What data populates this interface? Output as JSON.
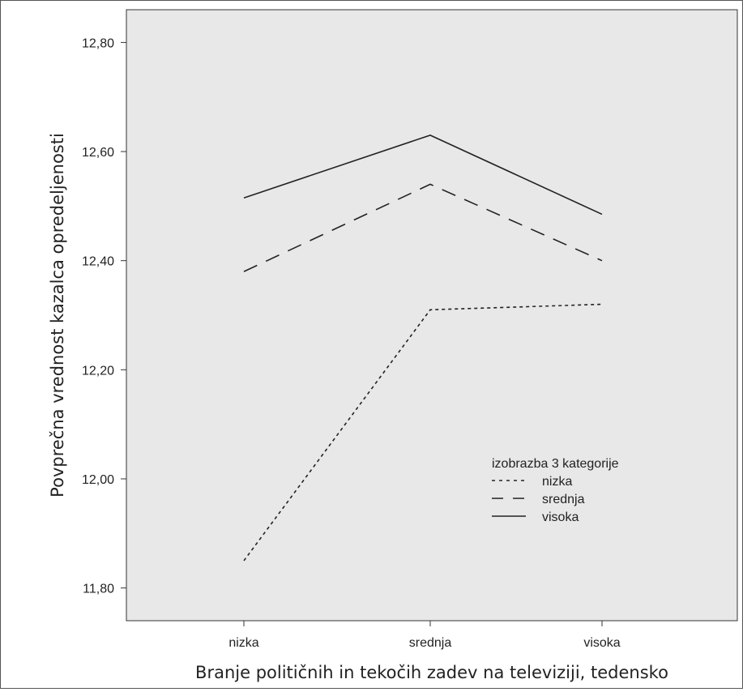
{
  "chart_data": {
    "type": "line",
    "xlabel": "Branje političnih in tekočih zadev na televiziji, tedensko",
    "ylabel": "Povprečna vrednost kazalca opredeljenosti",
    "categories": [
      "nizka",
      "srednja",
      "visoka"
    ],
    "ylim": [
      11.74,
      12.86
    ],
    "yticks": [
      11.8,
      12.0,
      12.2,
      12.4,
      12.6,
      12.8
    ],
    "ytick_labels": [
      "11,80",
      "12,00",
      "12,20",
      "12,40",
      "12,60",
      "12,80"
    ],
    "legend": {
      "title": "izobrazba 3 kategorije",
      "placement": "center-right"
    },
    "series": [
      {
        "name": "nizka",
        "values": [
          11.85,
          12.31,
          12.32
        ],
        "dash": "4,4",
        "color": "#222222"
      },
      {
        "name": "srednja",
        "values": [
          12.38,
          12.54,
          12.4
        ],
        "dash": "18,12",
        "color": "#222222"
      },
      {
        "name": "visoka",
        "values": [
          12.515,
          12.63,
          12.485
        ],
        "dash": "",
        "color": "#222222"
      }
    ],
    "grid": false,
    "plot_background": "#e8e8e8"
  }
}
